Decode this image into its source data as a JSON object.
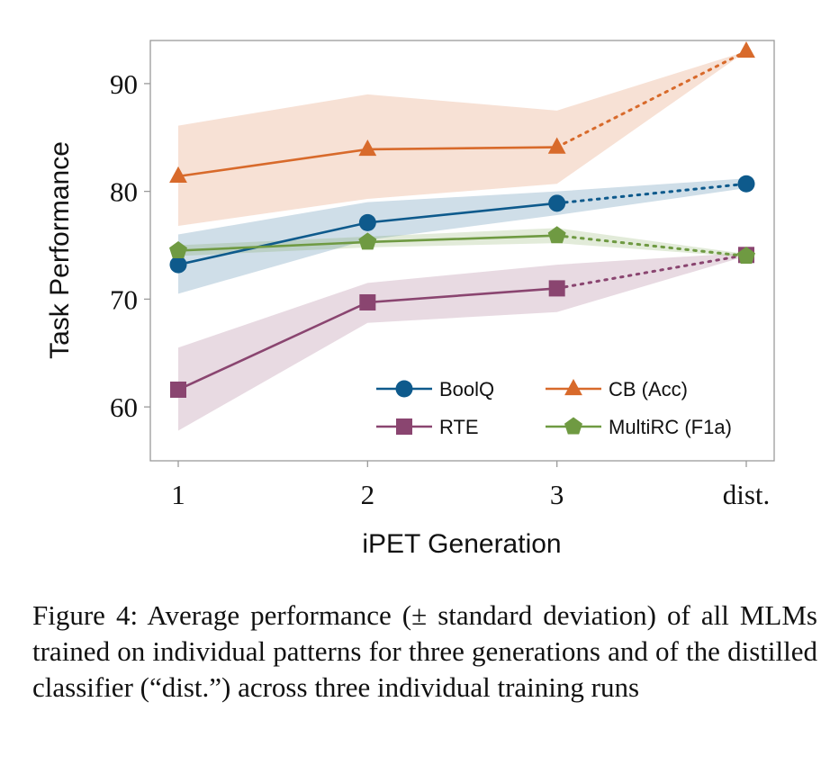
{
  "chart_data": {
    "type": "line",
    "categories": [
      "1",
      "2",
      "3",
      "dist."
    ],
    "xlabel": "iPET Generation",
    "ylabel": "Task Performance",
    "ylim": [
      55,
      94
    ],
    "yticks": [
      60,
      70,
      80,
      90
    ],
    "grid": false,
    "legend_position": "bottom-right",
    "series": [
      {
        "name": "BoolQ",
        "color": "#0e5a8c",
        "marker": "circle",
        "values": [
          73.2,
          77.1,
          78.9,
          80.7
        ],
        "lower": [
          70.5,
          75.5,
          77.8,
          80.3
        ],
        "upper": [
          76.0,
          79.0,
          80.0,
          81.2
        ]
      },
      {
        "name": "CB (Acc)",
        "color": "#d86a2b",
        "marker": "triangle",
        "values": [
          81.4,
          83.9,
          84.1,
          93.0
        ],
        "lower": [
          76.8,
          79.3,
          80.7,
          93.0
        ],
        "upper": [
          86.1,
          89.0,
          87.5,
          93.0
        ]
      },
      {
        "name": "RTE",
        "color": "#8a4570",
        "marker": "square",
        "values": [
          61.6,
          69.7,
          71.0,
          74.1
        ],
        "lower": [
          57.8,
          67.8,
          68.8,
          74.0
        ],
        "upper": [
          65.5,
          71.5,
          73.2,
          74.3
        ]
      },
      {
        "name": "MultiRC (F1a)",
        "color": "#6f9a42",
        "marker": "pentagon",
        "values": [
          74.5,
          75.3,
          75.9,
          74.0
        ],
        "lower": [
          74.0,
          74.8,
          75.2,
          73.9
        ],
        "upper": [
          75.0,
          75.8,
          76.6,
          74.2
        ]
      }
    ]
  },
  "caption": "Figure 4: Average performance (± standard deviation) of all MLMs trained on individual patterns for three generations and of the distilled classifier (“dist.”) across three individual training runs"
}
